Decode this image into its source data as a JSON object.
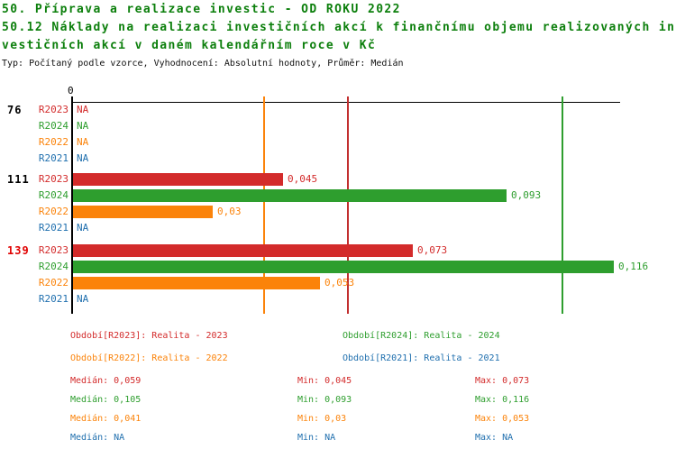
{
  "header": {
    "title_line1": "50. Příprava a realizace investic - OD ROKU 2022",
    "title_line2": "50.12 Náklady na realizaci investičních akcí k finančnímu objemu realizovaných in",
    "title_line3": "vestičních akcí v daném kalendářním roce v Kč",
    "meta_line": "Typ: Počítaný podle vzorce, Vyhodnocení: Absolutní hodnoty, Průměr: Medián"
  },
  "colors": {
    "title_green": "#0c7f0c",
    "series_red": "#d32b2b",
    "series_green": "#2e9e2e",
    "series_orange": "#fb830a",
    "series_blue": "#1f6fae",
    "highlight_red": "#e00000",
    "axis_black": "#000000"
  },
  "chart_data": {
    "type": "bar",
    "orientation": "horizontal-grouped",
    "title": "50.12 Náklady na realizaci investičních akcí k finančnímu objemu realizovaných investičních akcí v daném kalendářním roce v Kč",
    "axis": {
      "zero_label": "0",
      "min": 0,
      "max_visible": 0.118,
      "grid": "median-reference-lines"
    },
    "categories": [
      "76",
      "111",
      "139"
    ],
    "highlighted_category": "139",
    "series": [
      {
        "id": "R2023",
        "name": "Realita - 2023",
        "color": "#d32b2b",
        "values": [
          null,
          0.045,
          0.073
        ],
        "median": 0.059,
        "min": 0.045,
        "max": 0.073
      },
      {
        "id": "R2024",
        "name": "Realita - 2024",
        "color": "#2e9e2e",
        "values": [
          null,
          0.093,
          0.116
        ],
        "median": 0.105,
        "min": 0.093,
        "max": 0.116
      },
      {
        "id": "R2022",
        "name": "Realita - 2022",
        "color": "#fb830a",
        "values": [
          null,
          0.03,
          0.053
        ],
        "median": 0.041,
        "min": 0.03,
        "max": 0.053
      },
      {
        "id": "R2021",
        "name": "Realita - 2021",
        "color": "#1f6fae",
        "values": [
          null,
          null,
          null
        ],
        "median": null,
        "min": null,
        "max": null
      }
    ],
    "rows": [
      {
        "group": "76",
        "series": "R2023",
        "value": null,
        "label": "NA"
      },
      {
        "group": "76",
        "series": "R2024",
        "value": null,
        "label": "NA"
      },
      {
        "group": "76",
        "series": "R2022",
        "value": null,
        "label": "NA"
      },
      {
        "group": "76",
        "series": "R2021",
        "value": null,
        "label": "NA"
      },
      {
        "group": "111",
        "series": "R2023",
        "value": 0.045,
        "label": "0,045"
      },
      {
        "group": "111",
        "series": "R2024",
        "value": 0.093,
        "label": "0,093"
      },
      {
        "group": "111",
        "series": "R2022",
        "value": 0.03,
        "label": "0,03"
      },
      {
        "group": "111",
        "series": "R2021",
        "value": null,
        "label": "NA"
      },
      {
        "group": "139",
        "series": "R2023",
        "value": 0.073,
        "label": "0,073"
      },
      {
        "group": "139",
        "series": "R2024",
        "value": 0.116,
        "label": "0,116"
      },
      {
        "group": "139",
        "series": "R2022",
        "value": 0.053,
        "label": "0,053"
      },
      {
        "group": "139",
        "series": "R2021",
        "value": null,
        "label": "NA"
      }
    ]
  },
  "legend": {
    "items": [
      {
        "label": "Období[R2023]: Realita - 2023"
      },
      {
        "label": "Období[R2024]: Realita - 2024"
      },
      {
        "label": "Období[R2022]: Realita - 2022"
      },
      {
        "label": "Období[R2021]: Realita - 2021"
      }
    ]
  },
  "stats": {
    "rows": [
      {
        "median": "Medián: 0,059",
        "min": "Min: 0,045",
        "max": "Max: 0,073"
      },
      {
        "median": "Medián: 0,105",
        "min": "Min: 0,093",
        "max": "Max: 0,116"
      },
      {
        "median": "Medián: 0,041",
        "min": "Min: 0,03",
        "max": "Max: 0,053"
      },
      {
        "median": "Medián: NA",
        "min": "Min: NA",
        "max": "Max: NA"
      }
    ]
  }
}
